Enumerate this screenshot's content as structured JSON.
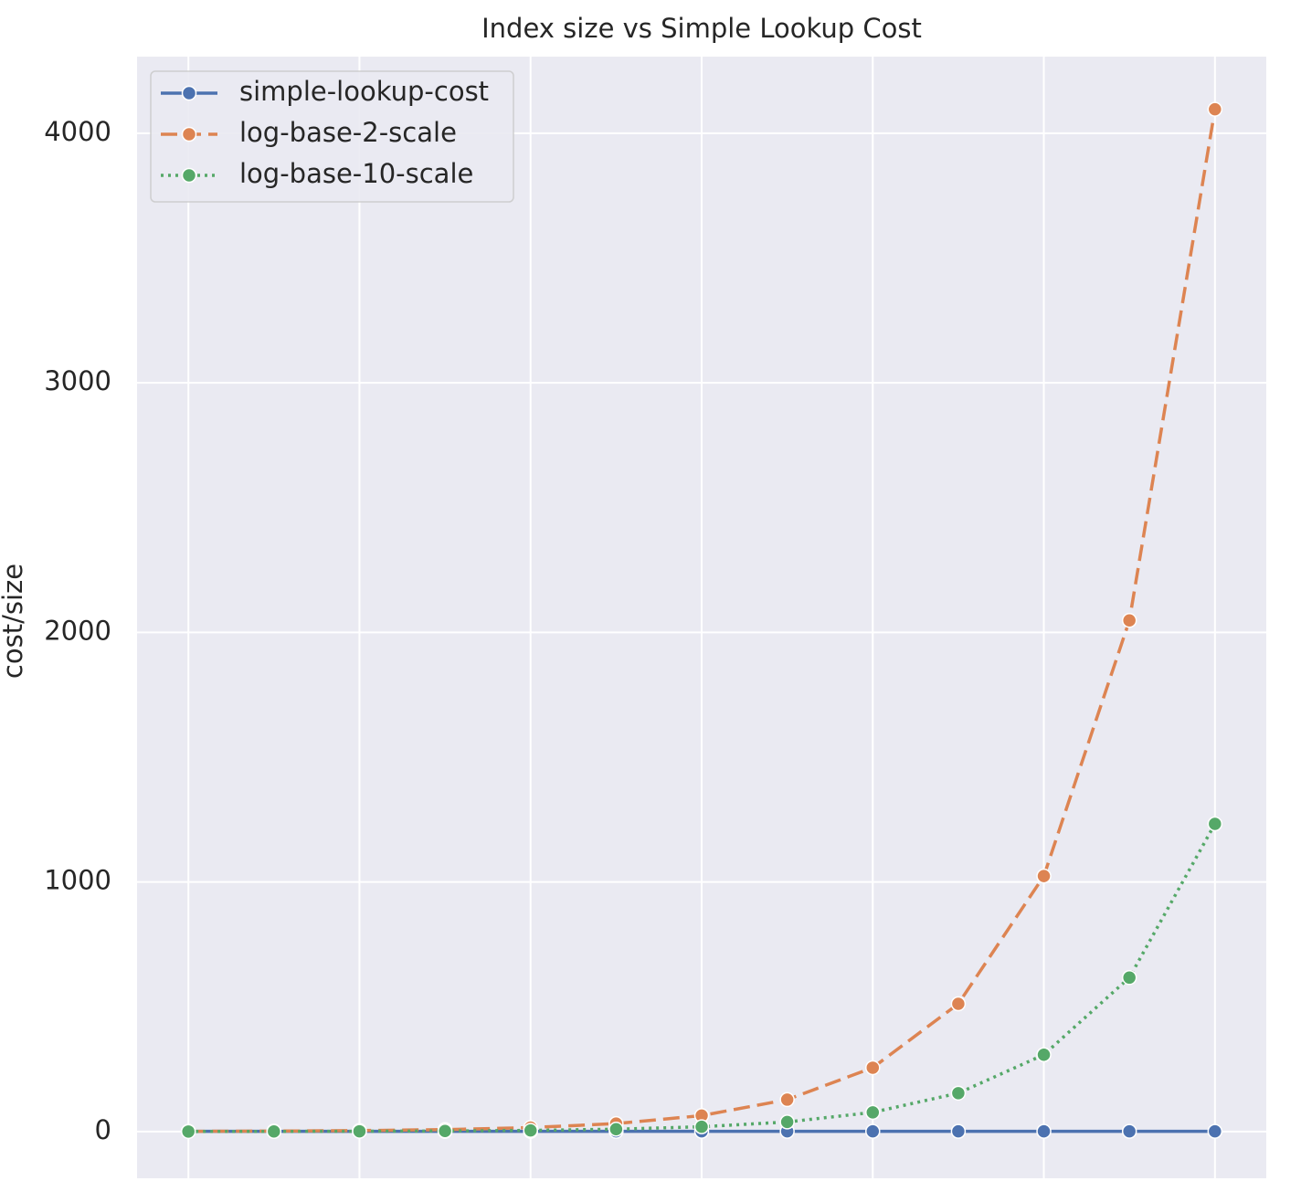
{
  "chart_data": {
    "type": "line",
    "title": "Index size vs Simple Lookup Cost",
    "ylabel": "cost/size",
    "x": [
      0,
      1,
      2,
      3,
      4,
      5,
      6,
      7,
      8,
      9,
      10,
      11,
      12
    ],
    "xlim": [
      -0.6,
      12.6
    ],
    "xticks": [
      0,
      2,
      4,
      6,
      8,
      10,
      12
    ],
    "ylim": [
      -187,
      4307
    ],
    "yticks": [
      0,
      1000,
      2000,
      3000,
      4000
    ],
    "grid": true,
    "legend": "upper left",
    "series": [
      {
        "name": "simple-lookup-cost",
        "color": "#4c72b0",
        "linestyle": "solid",
        "values": [
          1,
          1,
          1,
          1,
          1,
          1,
          1,
          1,
          1,
          1,
          1,
          1,
          1
        ]
      },
      {
        "name": "log-base-2-scale",
        "color": "#dd8452",
        "linestyle": "dashed",
        "values": [
          1,
          2,
          4,
          8,
          16,
          32,
          64,
          128,
          256,
          512,
          1024,
          2048,
          4096
        ]
      },
      {
        "name": "log-base-10-scale",
        "color": "#55a868",
        "linestyle": "dotted",
        "values": [
          0.3,
          0.6,
          1.2,
          2.4,
          4.8,
          9.6,
          19.3,
          38.5,
          77,
          154,
          308,
          617,
          1233
        ]
      }
    ]
  }
}
